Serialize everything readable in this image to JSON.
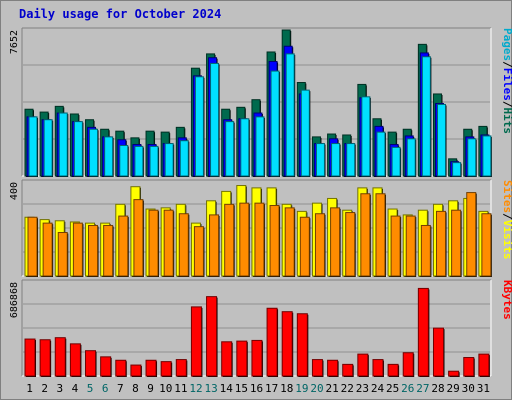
{
  "chart_data": {
    "title": "Daily usage for October 2024",
    "type": "bar",
    "categories": [
      "1",
      "2",
      "3",
      "4",
      "5",
      "6",
      "7",
      "8",
      "9",
      "10",
      "11",
      "12",
      "13",
      "14",
      "15",
      "16",
      "17",
      "18",
      "19",
      "20",
      "21",
      "22",
      "23",
      "24",
      "25",
      "26",
      "27",
      "28",
      "29",
      "30",
      "31"
    ],
    "weekend_days": [
      "5",
      "6",
      "12",
      "13",
      "19",
      "20",
      "26",
      "27"
    ],
    "colors": {
      "hits": "#006a4e",
      "files": "#0000ff",
      "pages": "#00e0ff",
      "visits": "#ffff00",
      "sites": "#ff8c00",
      "kbytes": "#ff0000",
      "weekday_label": "#000000",
      "weekend_label": "#006666"
    },
    "panels": [
      {
        "ymax": 7652,
        "ymax_label": "7652",
        "ylabel_parts": [
          {
            "text": "Pages",
            "color": "#00aacc"
          },
          {
            "text": "/",
            "color": "#000000"
          },
          {
            "text": "Files",
            "color": "#0000ff"
          },
          {
            "text": "/",
            "color": "#000000"
          },
          {
            "text": "Hits",
            "color": "#006a4e"
          }
        ],
        "series": [
          {
            "key": "hits",
            "values": [
              3500,
              3350,
              3650,
              3250,
              2950,
              2450,
              2350,
              2000,
              2350,
              2300,
              2550,
              5650,
              6400,
              3500,
              3600,
              4000,
              6500,
              7652,
              4900,
              2050,
              2200,
              2150,
              4800,
              3000,
              2300,
              2450,
              6900,
              4300,
              900,
              2450,
              2600
            ]
          },
          {
            "key": "files",
            "values": [
              3100,
              2950,
              3300,
              2850,
              2550,
              2050,
              1900,
              1650,
              1650,
              1700,
              2000,
              5250,
              6200,
              2950,
              3000,
              3300,
              6000,
              6800,
              4300,
              1700,
              1950,
              1700,
              4100,
              2600,
              1650,
              2100,
              6450,
              3800,
              750,
              2050,
              2150
            ]
          },
          {
            "key": "pages",
            "values": [
              3100,
              2950,
              3300,
              2850,
              2450,
              2050,
              1600,
              1550,
              1550,
              1700,
              1850,
              5200,
              5900,
              2850,
              3000,
              3100,
              5500,
              6400,
              4500,
              1700,
              1700,
              1700,
              4150,
              2300,
              1500,
              1950,
              6250,
              3750,
              700,
              1950,
              2100
            ]
          }
        ]
      },
      {
        "ymax": 400,
        "ymax_label": "400",
        "ylabel_parts": [
          {
            "text": "Sites",
            "color": "#ff8c00"
          },
          {
            "text": "/",
            "color": "#000000"
          },
          {
            "text": "Visits",
            "color": "#ffff00"
          }
        ],
        "series": [
          {
            "key": "visits",
            "values": [
              250,
              240,
              235,
              230,
              225,
              225,
              305,
              380,
              285,
              290,
              305,
              225,
              320,
              360,
              385,
              375,
              375,
              305,
              275,
              310,
              330,
              280,
              375,
              375,
              285,
              260,
              280,
              305,
              320,
              330,
              275
            ]
          },
          {
            "key": "sites",
            "values": [
              250,
              225,
              185,
              225,
              215,
              215,
              255,
              325,
              280,
              280,
              265,
              210,
              260,
              305,
              310,
              310,
              300,
              290,
              250,
              265,
              290,
              270,
              350,
              350,
              255,
              255,
              215,
              275,
              280,
              355,
              265
            ]
          }
        ]
      },
      {
        "ymax": 686868,
        "ymax_label": "686868",
        "ylabel_parts": [
          {
            "text": "KBytes",
            "color": "#ff0000"
          }
        ],
        "series": [
          {
            "key": "kbytes",
            "values": [
              270000,
              265000,
              280000,
              235000,
              185000,
              140000,
              115000,
              80000,
              115000,
              105000,
              120000,
              505000,
              580000,
              250000,
              255000,
              260000,
              495000,
              470000,
              455000,
              120000,
              115000,
              85000,
              160000,
              120000,
              85000,
              170000,
              640000,
              350000,
              35000,
              135000,
              160000
            ]
          }
        ]
      }
    ]
  }
}
